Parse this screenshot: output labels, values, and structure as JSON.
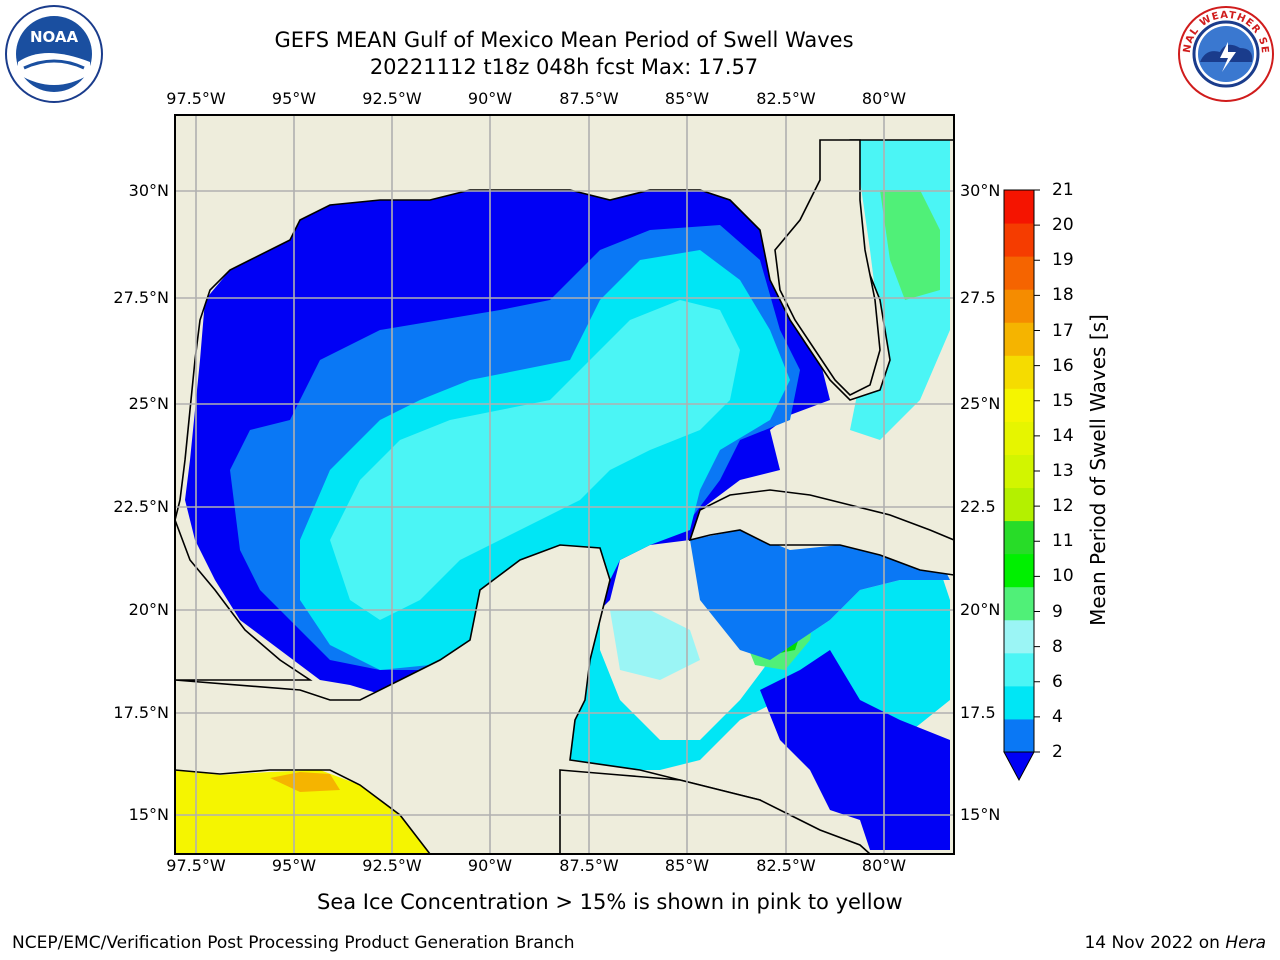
{
  "header": {
    "title_line1": "GEFS MEAN Gulf of Mexico Mean Period of Swell Waves",
    "title_line2": "20221112 t18z 048h fcst   Max: 17.57"
  },
  "logos": {
    "left": "noaa-logo",
    "right": "nws-logo",
    "noaa_text": "NOAA",
    "nws_ring_text": "NATIONAL WEATHER SERVICE"
  },
  "map": {
    "lon_labels": [
      "97.5°W",
      "95°W",
      "92.5°W",
      "90°W",
      "87.5°W",
      "85°W",
      "82.5°W",
      "80°W"
    ],
    "lat_labels_left": [
      "30°N",
      "27.5°N",
      "25°N",
      "22.5°N",
      "20°N",
      "17.5°N",
      "15°N"
    ],
    "lat_labels_right": [
      "30°N",
      "27.5",
      "25°N",
      "22.5",
      "20°N",
      "17.5",
      "15°N"
    ],
    "land_color": "#eeeddc",
    "colors": {
      "lt2": "#0000f5",
      "c2_4": "#0a78f5",
      "c4_6": "#00e6f5",
      "c6_8": "#4bf5f5",
      "c8_9": "#9bf5f5",
      "c9_10": "#50f078",
      "c10_11": "#00dc00",
      "ice_yellow": "#f5f500",
      "ice_orange": "#f5b400"
    }
  },
  "colorbar": {
    "label": "Mean Period of Swell Waves [s]",
    "ticks": [
      "21",
      "20",
      "19",
      "18",
      "17",
      "16",
      "15",
      "14",
      "13",
      "12",
      "11",
      "10",
      "9",
      "8",
      "6",
      "4",
      "2"
    ],
    "colors": [
      "#0a78f5",
      "#00e6f5",
      "#4bf5f5",
      "#9bf5f5",
      "#50f078",
      "#00f000",
      "#28dc28",
      "#b4f000",
      "#d2f500",
      "#e6f500",
      "#f5f500",
      "#f5dc00",
      "#f5b400",
      "#f58c00",
      "#f56400",
      "#f53c00",
      "#f51400"
    ],
    "under_color": "#0000f5"
  },
  "footer": {
    "note": "Sea Ice Concentration > 15% is shown in pink to yellow",
    "credit": "NCEP/EMC/Verification Post Processing Product Generation Branch",
    "date": "14 Nov 2022 on",
    "machine": "Hera"
  }
}
